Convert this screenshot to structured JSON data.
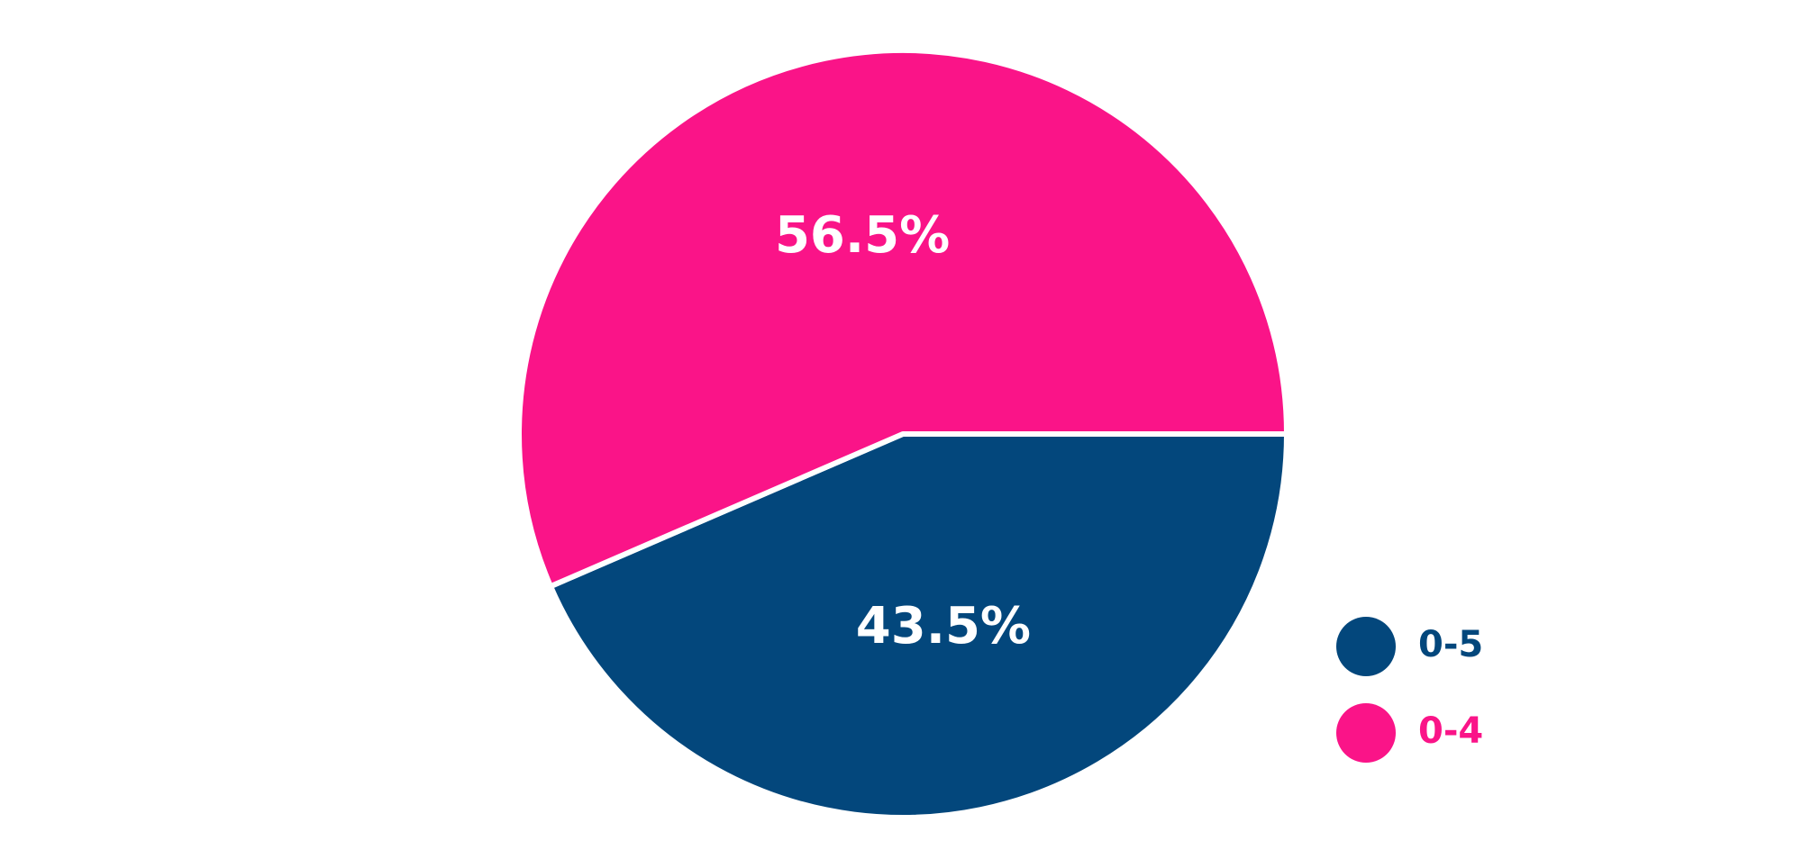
{
  "chart_data": {
    "type": "pie",
    "categories": [
      "0-5",
      "0-4"
    ],
    "values": [
      43.5,
      56.5
    ],
    "value_labels": [
      "43.5%",
      "56.5%"
    ],
    "colors": [
      "#03477c",
      "#fa1488"
    ],
    "legend": "bottom-right"
  }
}
